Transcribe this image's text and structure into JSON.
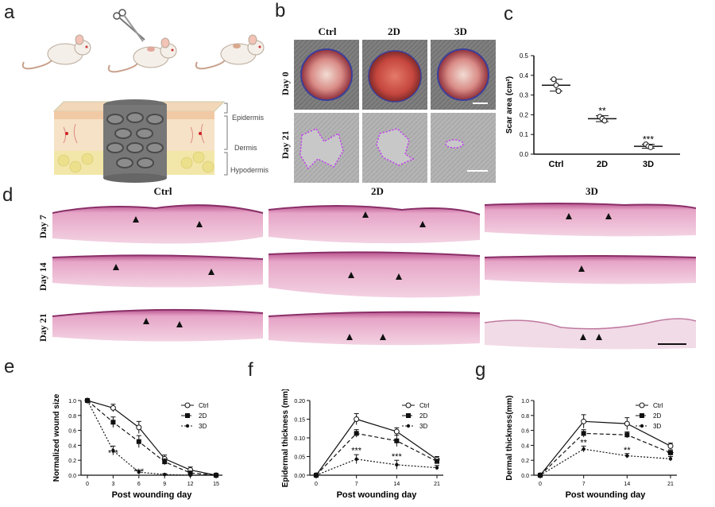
{
  "panels": {
    "a": "a",
    "b": "b",
    "c": "c",
    "d": "d",
    "e": "e",
    "f": "f",
    "g": "g"
  },
  "panel_a": {
    "layers": [
      "Epidermis",
      "Dermis",
      "Hypodermis"
    ]
  },
  "panel_b": {
    "columns": [
      "Ctrl",
      "2D",
      "3D"
    ],
    "rows": [
      "Day 0",
      "Day 21"
    ]
  },
  "panel_d": {
    "columns": [
      "Ctrl",
      "2D",
      "3D"
    ],
    "rows": [
      "Day 7",
      "Day 14",
      "Day 21"
    ]
  },
  "colors": {
    "he_pink": "#e7a8c8",
    "he_dark": "#a0467f",
    "wound_outline": "#c23cf0",
    "line": "#111111"
  },
  "chart_data": [
    {
      "id": "c",
      "type": "scatter",
      "xlabel": "",
      "ylabel": "Scar area (cm²)",
      "categories": [
        "Ctrl",
        "2D",
        "3D"
      ],
      "ylim": [
        0,
        0.5
      ],
      "yticks": [
        "0.0",
        "0.1",
        "0.2",
        "0.3",
        "0.4",
        "0.5"
      ],
      "points": [
        [
          0.38,
          0.35,
          0.32
        ],
        [
          0.19,
          0.18,
          0.17
        ],
        [
          0.05,
          0.04,
          0.035
        ]
      ],
      "mean": [
        0.35,
        0.18,
        0.04
      ],
      "sd": [
        0.03,
        0.015,
        0.01
      ],
      "annotations": [
        "",
        "**",
        "***"
      ]
    },
    {
      "id": "e",
      "type": "line",
      "xlabel": "Post wounding day",
      "ylabel": "Normalized wound size",
      "x": [
        0,
        3,
        6,
        9,
        12,
        15
      ],
      "xticks": [
        "0",
        "3",
        "6",
        "9",
        "12",
        "15"
      ],
      "ylim": [
        0,
        1.0
      ],
      "yticks": [
        "0.0",
        "0.2",
        "0.4",
        "0.6",
        "0.8",
        "1.0"
      ],
      "series": [
        {
          "name": "Ctrl",
          "values": [
            1.0,
            0.9,
            0.64,
            0.22,
            0.07,
            0.0
          ],
          "err": [
            0,
            0.05,
            0.08,
            0.05,
            0.04,
            0
          ]
        },
        {
          "name": "2D",
          "values": [
            1.0,
            0.71,
            0.45,
            0.18,
            0.03,
            0.0
          ],
          "err": [
            0,
            0.07,
            0.08,
            0.04,
            0.02,
            0
          ]
        },
        {
          "name": "3D",
          "values": [
            1.0,
            0.33,
            0.04,
            0.01,
            0.0,
            0.0
          ],
          "err": [
            0,
            0.06,
            0.02,
            0.01,
            0,
            0
          ]
        }
      ],
      "annotations": [
        {
          "text": "***",
          "x": 3,
          "y": 0.26
        },
        {
          "text": "***",
          "x": 6,
          "y": 0.01
        }
      ]
    },
    {
      "id": "f",
      "type": "line",
      "xlabel": "Post wounding day",
      "ylabel": "Epidermal thickness (mm)",
      "x": [
        0,
        7,
        14,
        21
      ],
      "xticks": [
        "0",
        "7",
        "14",
        "21"
      ],
      "ylim": [
        0,
        0.2
      ],
      "yticks": [
        "0.00",
        "0.05",
        "0.10",
        "0.15",
        "0.20"
      ],
      "series": [
        {
          "name": "Ctrl",
          "values": [
            0.0,
            0.15,
            0.117,
            0.042
          ],
          "err": [
            0,
            0.015,
            0.01,
            0.008
          ]
        },
        {
          "name": "2D",
          "values": [
            0.0,
            0.112,
            0.092,
            0.037
          ],
          "err": [
            0,
            0.01,
            0.015,
            0.006
          ]
        },
        {
          "name": "3D",
          "values": [
            0.0,
            0.043,
            0.028,
            0.02
          ],
          "err": [
            0,
            0.012,
            0.012,
            0.006
          ]
        }
      ],
      "annotations": [
        {
          "text": "***",
          "x": 7,
          "y": 0.058
        },
        {
          "text": "***",
          "x": 14,
          "y": 0.043
        }
      ]
    },
    {
      "id": "g",
      "type": "line",
      "xlabel": "Post wounding day",
      "ylabel": "Dermal thickness(mm)",
      "x": [
        0,
        7,
        14,
        21
      ],
      "xticks": [
        "0",
        "7",
        "14",
        "21"
      ],
      "ylim": [
        0,
        1.0
      ],
      "yticks": [
        "0.0",
        "0.2",
        "0.4",
        "0.6",
        "0.8",
        "1.0"
      ],
      "series": [
        {
          "name": "Ctrl",
          "values": [
            0.0,
            0.72,
            0.69,
            0.39
          ],
          "err": [
            0,
            0.09,
            0.08,
            0.04
          ]
        },
        {
          "name": "2D",
          "values": [
            0.0,
            0.56,
            0.54,
            0.3
          ],
          "err": [
            0,
            0.05,
            0.04,
            0.04
          ]
        },
        {
          "name": "3D",
          "values": [
            0.0,
            0.35,
            0.26,
            0.22
          ],
          "err": [
            0,
            0.04,
            0.03,
            0.03
          ]
        }
      ],
      "annotations": [
        {
          "text": "**",
          "x": 7,
          "y": 0.4
        },
        {
          "text": "**",
          "x": 14,
          "y": 0.3
        },
        {
          "text": "**",
          "x": 21,
          "y": 0.24
        }
      ]
    }
  ]
}
